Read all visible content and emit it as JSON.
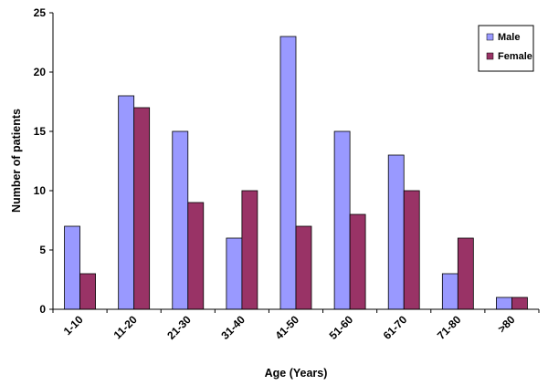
{
  "chart_data": {
    "type": "bar",
    "categories": [
      "1-10",
      "11-20",
      "21-30",
      "31-40",
      "41-50",
      "51-60",
      "61-70",
      "71-80",
      ">80"
    ],
    "series": [
      {
        "name": "Male",
        "values": [
          7,
          18,
          15,
          6,
          23,
          15,
          13,
          3,
          1
        ],
        "color": "#9999ff"
      },
      {
        "name": "Female",
        "values": [
          3,
          17,
          9,
          10,
          7,
          8,
          10,
          6,
          1
        ],
        "color": "#993366"
      }
    ],
    "xlabel": "Age (Years)",
    "ylabel": "Number of patients",
    "ylim": [
      0,
      25
    ],
    "yticks": [
      0,
      5,
      10,
      15,
      20,
      25
    ],
    "grid": false,
    "legend_position": "top-right"
  }
}
